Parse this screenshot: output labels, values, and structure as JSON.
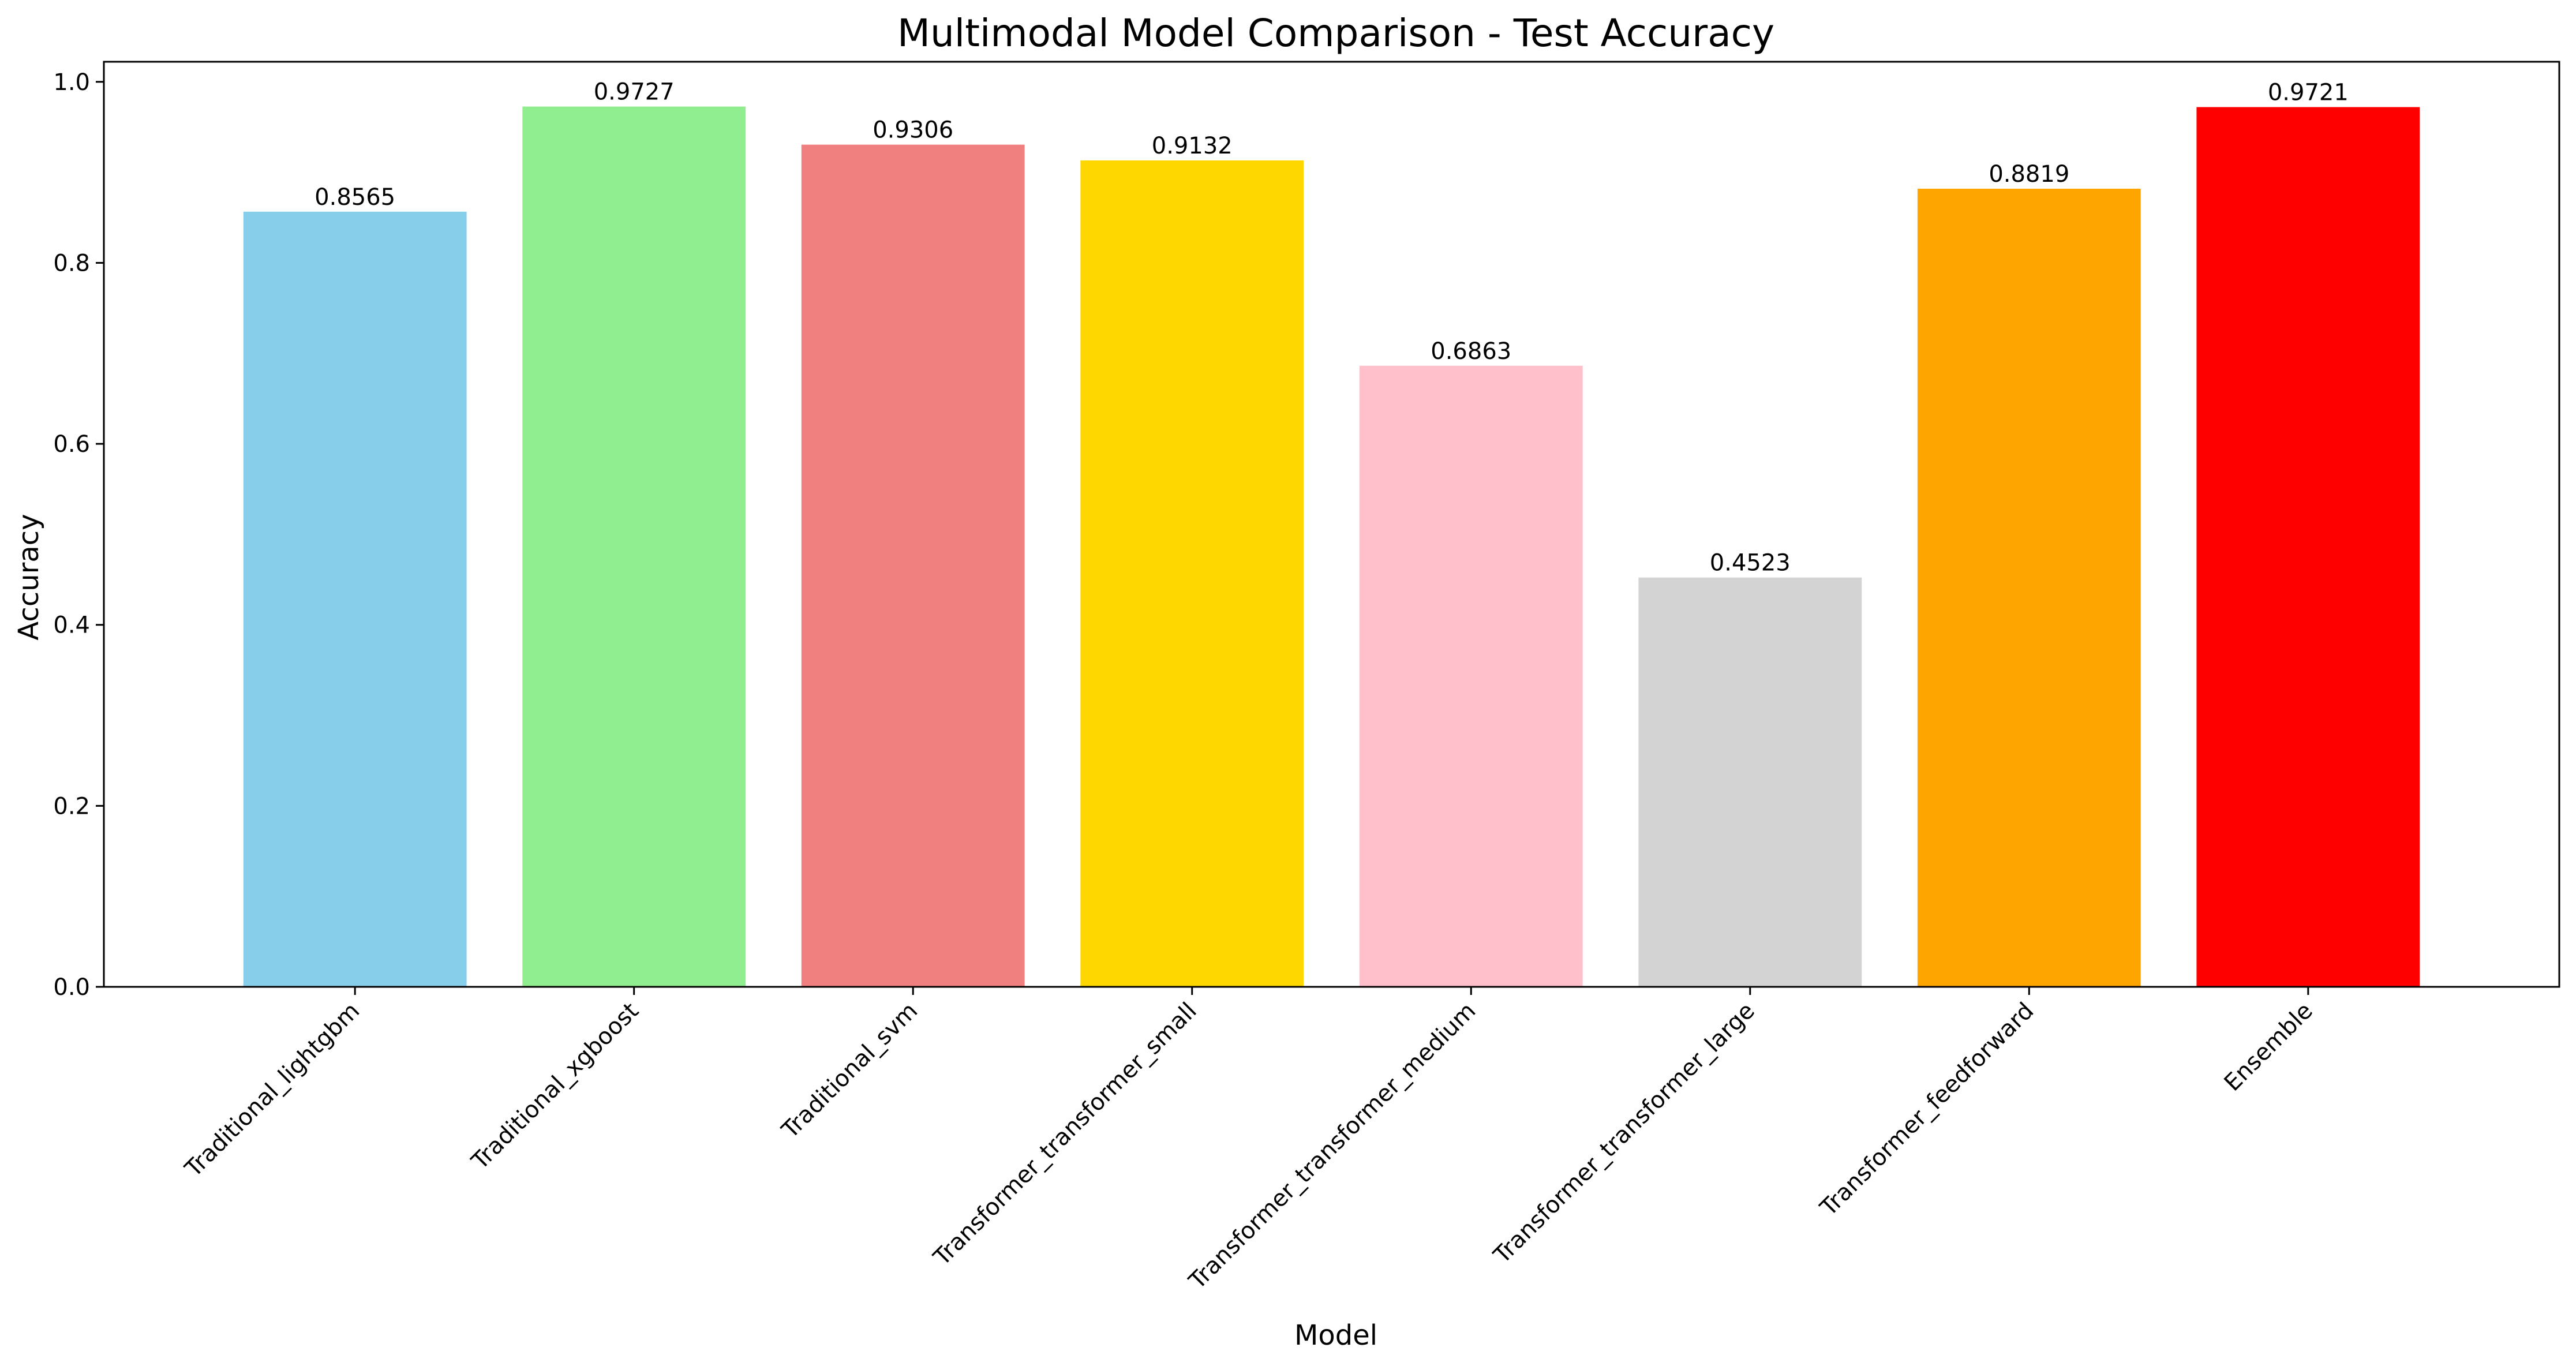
{
  "chart_data": {
    "type": "bar",
    "title": "Multimodal Model Comparison - Test Accuracy",
    "xlabel": "Model",
    "ylabel": "Accuracy",
    "categories": [
      "Traditional_lightgbm",
      "Traditional_xgboost",
      "Traditional_svm",
      "Transformer_transformer_small",
      "Transformer_transformer_medium",
      "Transformer_transformer_large",
      "Transformer_feedforward",
      "Ensemble"
    ],
    "values": [
      0.8565,
      0.9727,
      0.9306,
      0.9132,
      0.6863,
      0.4523,
      0.8819,
      0.9721
    ],
    "data_labels": [
      "0.8565",
      "0.9727",
      "0.9306",
      "0.9132",
      "0.6863",
      "0.4523",
      "0.8819",
      "0.9721"
    ],
    "colors": [
      "#87CEEB",
      "#90EE90",
      "#F08080",
      "#FFD700",
      "#FFC0CB",
      "#D3D3D3",
      "#FFA500",
      "#FF0000"
    ],
    "ylim": [
      0,
      1.0
    ],
    "yticks": [
      0.0,
      0.2,
      0.4,
      0.6,
      0.8,
      1.0
    ],
    "ytick_labels": [
      "0.0",
      "0.2",
      "0.4",
      "0.6",
      "0.8",
      "1.0"
    ],
    "grid": false,
    "legend": false
  }
}
